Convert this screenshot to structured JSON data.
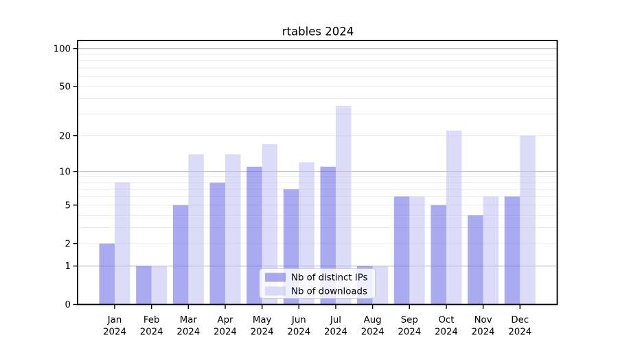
{
  "figure": {
    "background": "#ffffff"
  },
  "chart_data": {
    "type": "bar",
    "title": "rtables 2024",
    "year": "2024",
    "categories": [
      "Jan",
      "Feb",
      "Mar",
      "Apr",
      "May",
      "Jun",
      "Jul",
      "Aug",
      "Sep",
      "Oct",
      "Nov",
      "Dec"
    ],
    "series": [
      {
        "name": "Nb of distinct IPs",
        "color": "#5555e1",
        "opacity": 0.5,
        "values": [
          2,
          1,
          5,
          8,
          11,
          7,
          11,
          1,
          6,
          5,
          4,
          6
        ]
      },
      {
        "name": "Nb of downloads",
        "color": "#b9b9f2",
        "opacity": 0.5,
        "values": [
          8,
          1,
          14,
          14,
          17,
          12,
          35,
          1,
          6,
          22,
          6,
          20
        ]
      }
    ],
    "yscale": "log1p",
    "ytick_values": [
      0,
      1,
      2,
      5,
      10,
      20,
      50,
      100
    ],
    "minor_grid_values": [
      2,
      3,
      4,
      5,
      6,
      7,
      8,
      9,
      20,
      30,
      40,
      50,
      60,
      70,
      80,
      90
    ],
    "major_grid_values": [
      1,
      10,
      100
    ],
    "ylim": [
      0,
      115
    ],
    "xlabel": "",
    "ylabel": "",
    "grid": "both",
    "legend_position": "lower center",
    "colors": {
      "major_grid": "#aaaaaa",
      "minor_grid": "#ebebeb",
      "axis": "#000000",
      "legend_border": "#cccccc",
      "legend_background": "rgba(255,255,255,0.8)"
    }
  }
}
